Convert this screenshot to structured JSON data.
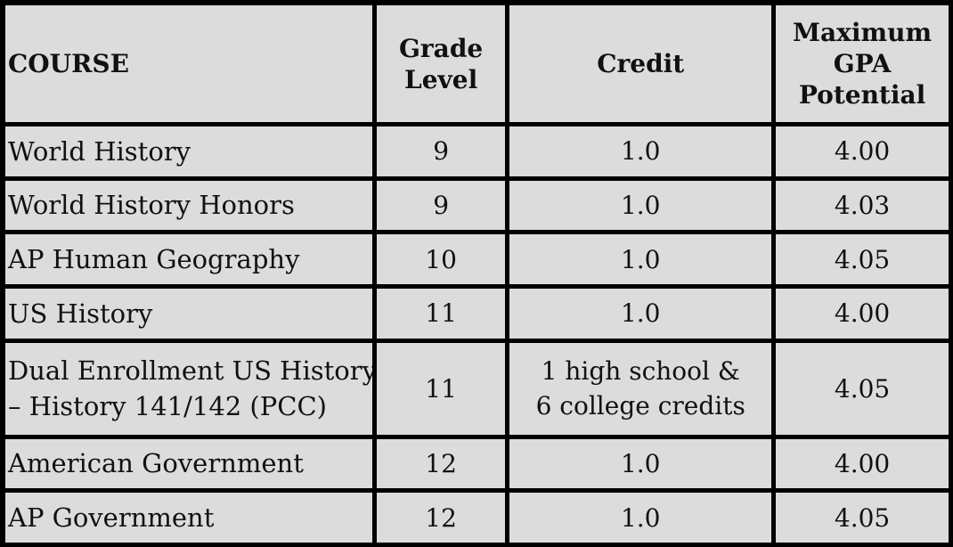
{
  "headers": {
    "course": "COURSE",
    "grade_level": "Grade Level",
    "credit": "Credit",
    "max_gpa": "Maximum GPA Potential"
  },
  "rows": [
    {
      "course": "World History",
      "grade": "9",
      "credit": "1.0",
      "gpa": "4.00"
    },
    {
      "course": "World History Honors",
      "grade": "9",
      "credit": "1.0",
      "gpa": "4.03"
    },
    {
      "course": "AP Human Geography",
      "grade": "10",
      "credit": "1.0",
      "gpa": "4.05"
    },
    {
      "course": "US History",
      "grade": "11",
      "credit": "1.0",
      "gpa": "4.00"
    },
    {
      "course_line1": "Dual Enrollment US History",
      "course_line2": "– History 141/142 (PCC)",
      "grade": "11",
      "credit_line1": "1 high school &",
      "credit_line2": "6 college credits",
      "gpa": "4.05"
    },
    {
      "course": "American Government",
      "grade": "12",
      "credit": "1.0",
      "gpa": "4.00"
    },
    {
      "course": "AP Government",
      "grade": "12",
      "credit": "1.0",
      "gpa": "4.05"
    }
  ]
}
